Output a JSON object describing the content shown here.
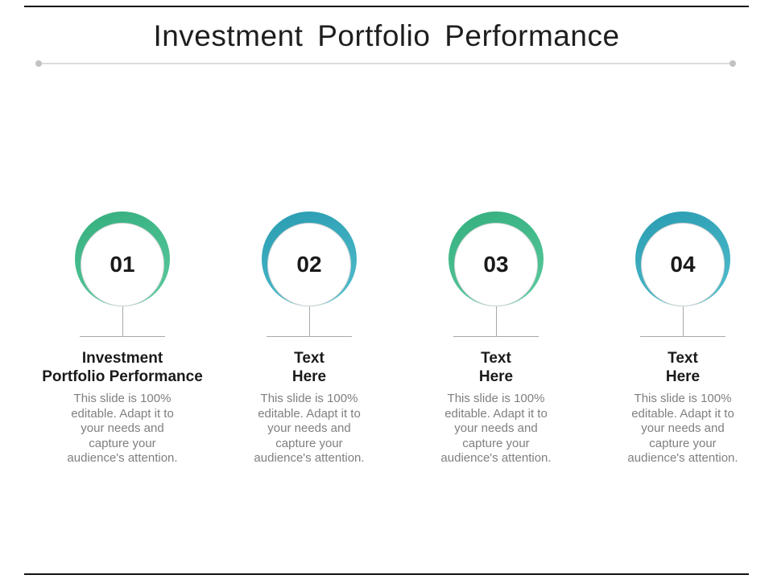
{
  "slide": {
    "title": "Investment Portfolio Performance",
    "colors": {
      "title_text": "#1e1e1e",
      "heading_text": "#1a1a1a",
      "body_text": "#7f7f7f",
      "divider_line": "#dcdcdc",
      "divider_dot": "#c2c2c2",
      "connector_line": "#a8a8a8",
      "frame_line": "#121212",
      "ring_green": "#45bd8e",
      "ring_teal": "#37a9bd"
    },
    "items": [
      {
        "number": "01",
        "ring_color": "green",
        "ring_hex": [
          "#38b181",
          "#58c99c"
        ],
        "heading": "Investment\nPortfolio Performance",
        "body": "This slide is 100%\neditable. Adapt it to\nyour needs and\ncapture your\naudience's attention."
      },
      {
        "number": "02",
        "ring_color": "teal",
        "ring_hex": [
          "#2d9fb4",
          "#4fbccb"
        ],
        "heading": "Text\nHere",
        "body": "This slide is 100%\neditable. Adapt it to\nyour needs and\ncapture your\naudience's attention."
      },
      {
        "number": "03",
        "ring_color": "green",
        "ring_hex": [
          "#38b181",
          "#58c99c"
        ],
        "heading": "Text\nHere",
        "body": "This slide is 100%\neditable. Adapt it to\nyour needs and\ncapture your\naudience's attention."
      },
      {
        "number": "04",
        "ring_color": "teal",
        "ring_hex": [
          "#2d9fb4",
          "#4fbccb"
        ],
        "heading": "Text\nHere",
        "body": "This slide is 100%\neditable. Adapt it to\nyour needs and\ncapture your\naudience's attention."
      }
    ]
  }
}
